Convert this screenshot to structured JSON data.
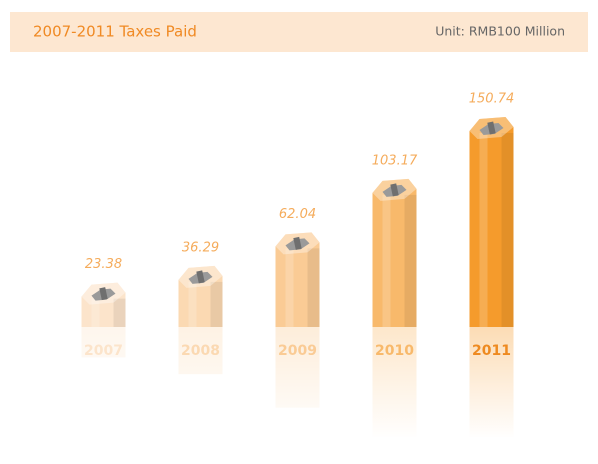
{
  "chart_data": {
    "type": "bar",
    "title": "2007-2011 Taxes Paid",
    "unit": "Unit: RMB100 Million",
    "categories": [
      "2007",
      "2008",
      "2009",
      "2010",
      "2011"
    ],
    "values": [
      23.38,
      36.29,
      62.04,
      103.17,
      150.74
    ],
    "colors": [
      "#fce4cb",
      "#fbd9b2",
      "#facb95",
      "#f8b96b",
      "#f59b2c"
    ]
  }
}
